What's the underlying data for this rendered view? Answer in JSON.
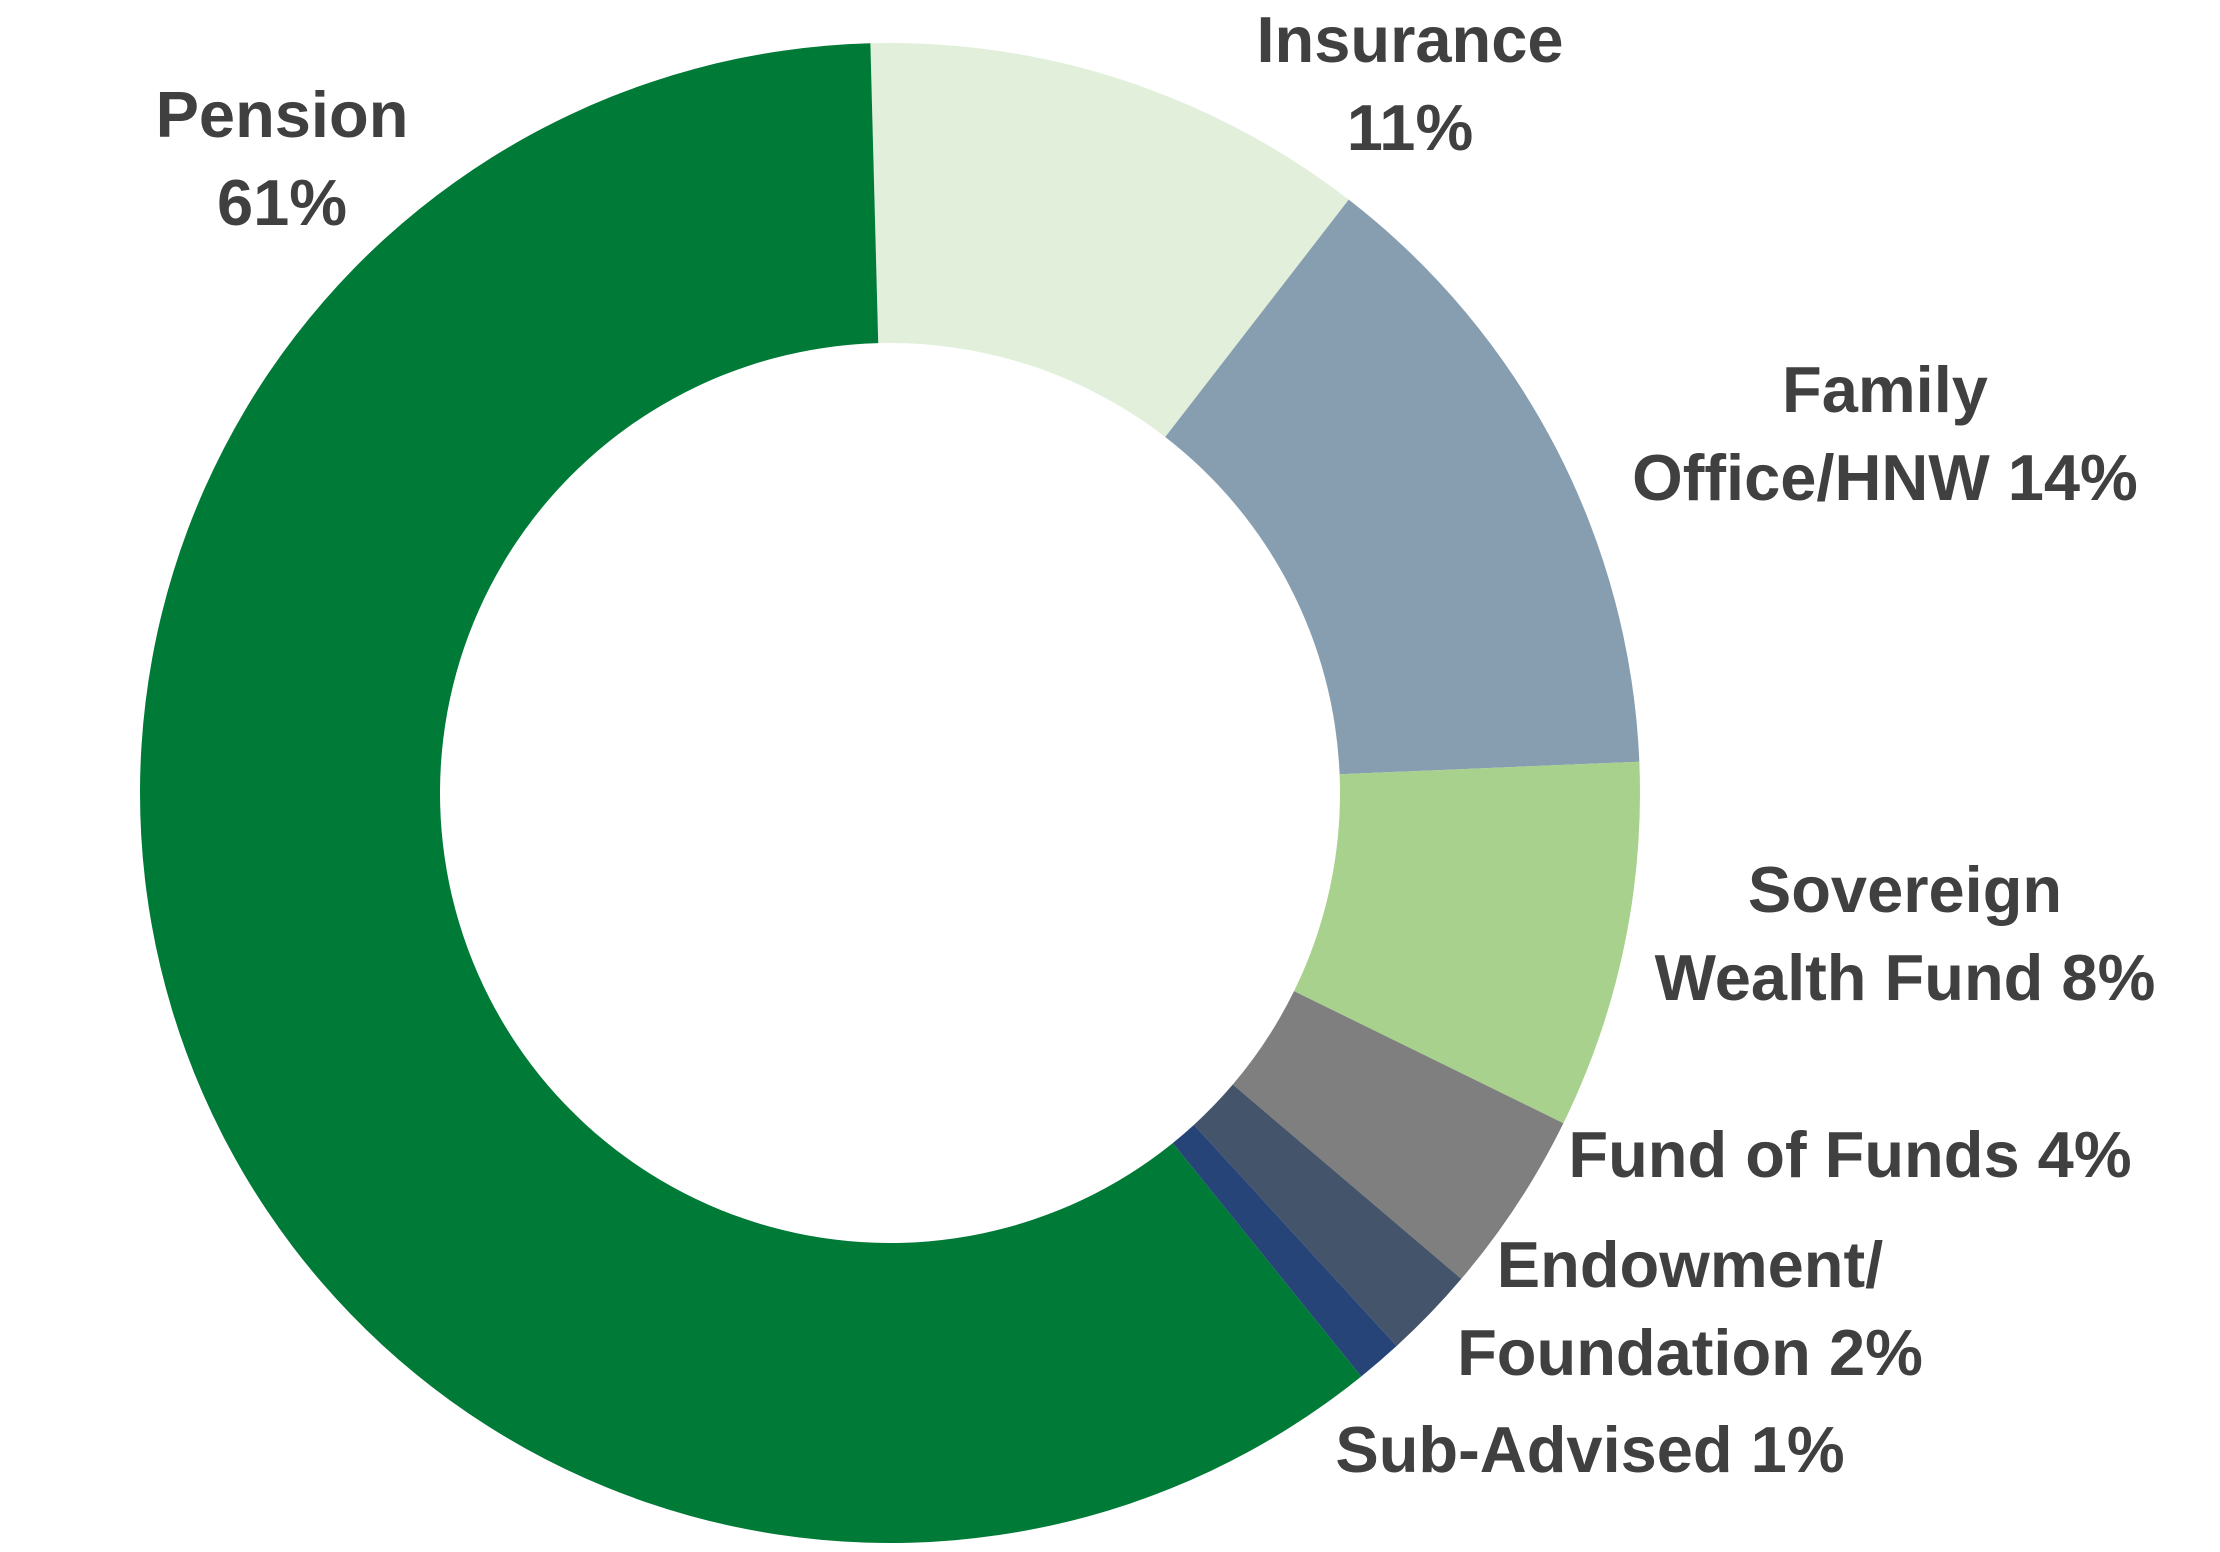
{
  "chart_data": {
    "type": "pie",
    "variant": "donut",
    "title": "",
    "legend": "none",
    "slices": [
      {
        "name": "Insurance",
        "value": 11,
        "label_lines": [
          "Insurance",
          "11%"
        ],
        "color": "#e2efda"
      },
      {
        "name": "Family Office/HNW",
        "value": 14,
        "label_lines": [
          "Family",
          "Office/HNW  14%"
        ],
        "color": "#879eb1"
      },
      {
        "name": "Sovereign Wealth Fund",
        "value": 8,
        "label_lines": [
          "Sovereign",
          "Wealth Fund  8%"
        ],
        "color": "#a9d18e"
      },
      {
        "name": "Fund of Funds",
        "value": 4,
        "label_lines": [
          "Fund of Funds  4%"
        ],
        "color": "#7f7f7f"
      },
      {
        "name": "Endowment/Foundation",
        "value": 2,
        "label_lines": [
          "Endowment/",
          "Foundation  2%"
        ],
        "color": "#44546a"
      },
      {
        "name": "Sub-Advised",
        "value": 1,
        "label_lines": [
          "Sub-Advised 1%"
        ],
        "color": "#264478"
      },
      {
        "name": "Pension",
        "value": 61,
        "label_lines": [
          "Pension",
          "61%"
        ],
        "color": "#007a37"
      }
    ]
  }
}
